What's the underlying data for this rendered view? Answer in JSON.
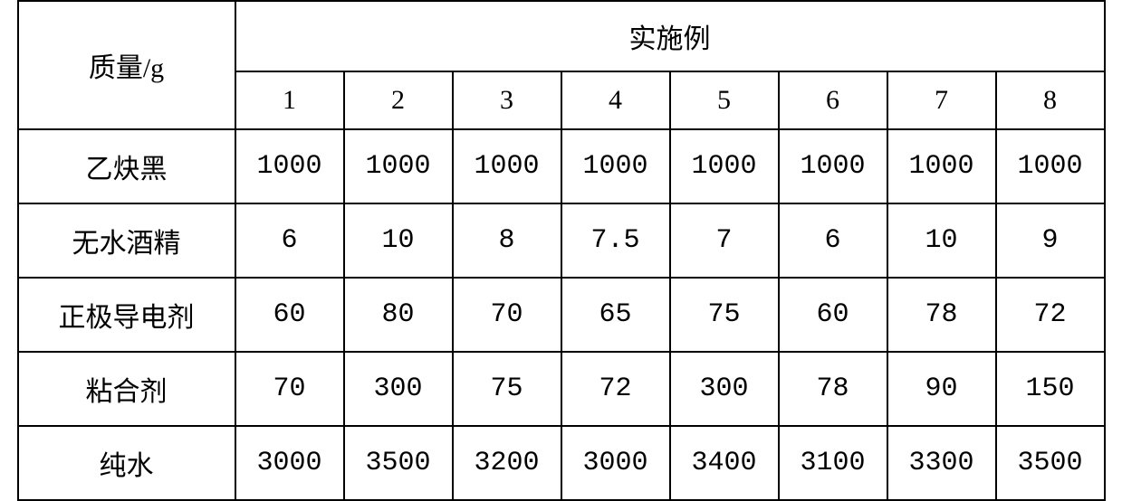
{
  "table": {
    "type": "table",
    "row_label_header": "质量/g",
    "column_group_header": "实施例",
    "column_numbers": [
      "1",
      "2",
      "3",
      "4",
      "5",
      "6",
      "7",
      "8"
    ],
    "rows": [
      {
        "label": "乙炔黑",
        "values": [
          "1000",
          "1000",
          "1000",
          "1000",
          "1000",
          "1000",
          "1000",
          "1000"
        ]
      },
      {
        "label": "无水酒精",
        "values": [
          "6",
          "10",
          "8",
          "7.5",
          "7",
          "6",
          "10",
          "9"
        ]
      },
      {
        "label": "正极导电剂",
        "values": [
          "60",
          "80",
          "70",
          "65",
          "75",
          "60",
          "78",
          "72"
        ]
      },
      {
        "label": "粘合剂",
        "values": [
          "70",
          "300",
          "75",
          "72",
          "300",
          "78",
          "90",
          "150"
        ]
      },
      {
        "label": "纯水",
        "values": [
          "3000",
          "3500",
          "3200",
          "3000",
          "3400",
          "3100",
          "3300",
          "3500"
        ]
      }
    ],
    "border_color": "#000000",
    "background_color": "#ffffff",
    "text_color": "#000000",
    "font_size_header": 30,
    "font_size_data": 30,
    "row_header_width": 240,
    "data_col_width": 120
  }
}
